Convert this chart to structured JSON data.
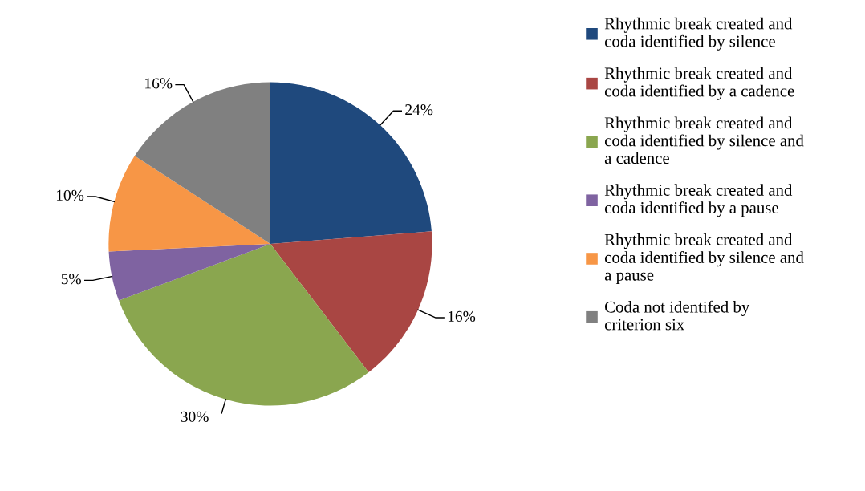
{
  "chart_data": {
    "type": "pie",
    "categories": [
      "Rhythmic break created and coda identified by silence",
      "Rhythmic break created and coda identified by a cadence",
      "Rhythmic break created and coda identified by silence and a cadence",
      "Rhythmic break created and coda identified by a pause",
      "Rhythmic break created and coda identified by silence and a pause",
      "Coda not identifed by criterion six"
    ],
    "values": [
      24,
      16,
      30,
      5,
      10,
      16
    ],
    "colors": [
      "#1f497d",
      "#a94643",
      "#8aa64f",
      "#7f63a1",
      "#f79646",
      "#808080"
    ],
    "value_labels": [
      "24%",
      "16%",
      "30%",
      "5%",
      "10%",
      "16%"
    ],
    "legend": "right"
  }
}
